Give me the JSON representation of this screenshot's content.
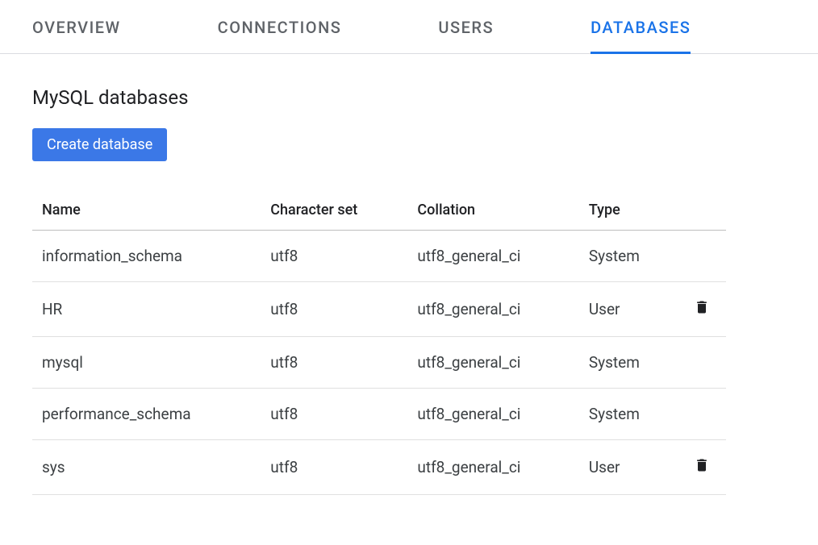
{
  "tabs": [
    {
      "label": "OVERVIEW",
      "active": false
    },
    {
      "label": "CONNECTIONS",
      "active": false
    },
    {
      "label": "USERS",
      "active": false
    },
    {
      "label": "DATABASES",
      "active": true
    }
  ],
  "section": {
    "title": "MySQL databases",
    "create_button_label": "Create database"
  },
  "table": {
    "columns": {
      "name": "Name",
      "charset": "Character set",
      "collation": "Collation",
      "type": "Type"
    },
    "rows": [
      {
        "name": "information_schema",
        "charset": "utf8",
        "collation": "utf8_general_ci",
        "type": "System",
        "deletable": false
      },
      {
        "name": "HR",
        "charset": "utf8",
        "collation": "utf8_general_ci",
        "type": "User",
        "deletable": true
      },
      {
        "name": "mysql",
        "charset": "utf8",
        "collation": "utf8_general_ci",
        "type": "System",
        "deletable": false
      },
      {
        "name": "performance_schema",
        "charset": "utf8",
        "collation": "utf8_general_ci",
        "type": "System",
        "deletable": false
      },
      {
        "name": "sys",
        "charset": "utf8",
        "collation": "utf8_general_ci",
        "type": "User",
        "deletable": true
      }
    ]
  },
  "colors": {
    "accent": "#1a73e8",
    "button_bg": "#3b78e7",
    "tab_inactive": "#5f6368",
    "border": "#dadce0",
    "row_border": "#e0e0e0",
    "header_border": "#bdbdbd",
    "text": "#202124",
    "cell_text": "#3c4043"
  }
}
